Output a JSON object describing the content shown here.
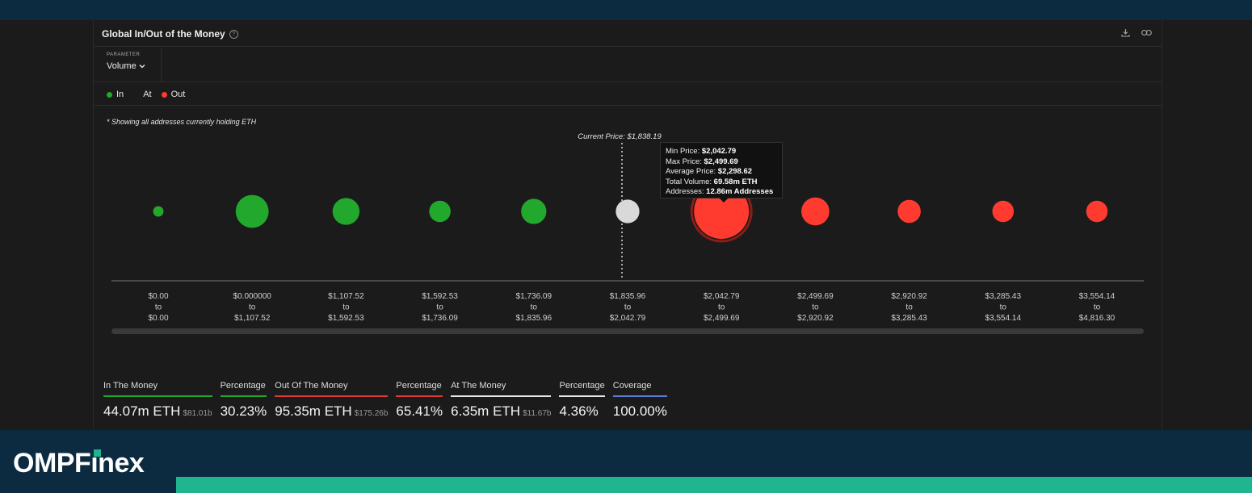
{
  "widget": {
    "title": "Global In/Out of the Money",
    "parameter_label": "PARAMETER",
    "parameter_value": "Volume",
    "legend": [
      {
        "label": "In",
        "color": "#22a82d"
      },
      {
        "label": "At",
        "color": ""
      },
      {
        "label": "Out",
        "color": "#ff3b2f"
      }
    ],
    "note": "* Showing all addresses currently holding ETH",
    "current_price_label": "Current Price: $1,838.19"
  },
  "tooltip": {
    "rows": [
      {
        "label": "Min Price:",
        "value": "$2,042.79"
      },
      {
        "label": "Max Price:",
        "value": "$2,499.69"
      },
      {
        "label": "Average Price:",
        "value": "$2,298.62"
      },
      {
        "label": "Total Volume:",
        "value": "69.58m ETH"
      },
      {
        "label": "Addresses:",
        "value": "12.86m Addresses"
      }
    ]
  },
  "chart_data": {
    "type": "scatter",
    "title": "Global In/Out of the Money",
    "current_price": 1838.19,
    "categories": [
      {
        "from": "$0.00",
        "to": "$0.00",
        "status": "in",
        "relative_size": 0.19
      },
      {
        "from": "$0.000000",
        "to": "$1,107.52",
        "status": "in",
        "relative_size": 0.6
      },
      {
        "from": "$1,107.52",
        "to": "$1,592.53",
        "status": "in",
        "relative_size": 0.49
      },
      {
        "from": "$1,592.53",
        "to": "$1,736.09",
        "status": "in",
        "relative_size": 0.39
      },
      {
        "from": "$1,736.09",
        "to": "$1,835.96",
        "status": "in",
        "relative_size": 0.46
      },
      {
        "from": "$1,835.96",
        "to": "$2,042.79",
        "status": "at",
        "relative_size": 0.43
      },
      {
        "from": "$2,042.79",
        "to": "$2,499.69",
        "status": "out",
        "relative_size": 1.0
      },
      {
        "from": "$2,499.69",
        "to": "$2,920.92",
        "status": "out",
        "relative_size": 0.51
      },
      {
        "from": "$2,920.92",
        "to": "$3,285.43",
        "status": "out",
        "relative_size": 0.42
      },
      {
        "from": "$3,285.43",
        "to": "$3,554.14",
        "status": "out",
        "relative_size": 0.39
      },
      {
        "from": "$3,554.14",
        "to": "$4,816.30",
        "status": "out",
        "relative_size": 0.39
      }
    ],
    "to_word": "to",
    "colors": {
      "in": "#22a82d",
      "at": "#d9d9d9",
      "out": "#ff3b2f"
    },
    "highlighted_index": 6
  },
  "stats": [
    {
      "label": "In The Money",
      "value": "44.07m ETH",
      "sub": "$81.01b",
      "color": "#22a82d"
    },
    {
      "label": "Percentage",
      "value": "30.23%",
      "sub": "",
      "color": "#22a82d"
    },
    {
      "label": "Out Of The Money",
      "value": "95.35m ETH",
      "sub": "$175.26b",
      "color": "#e0392f"
    },
    {
      "label": "Percentage",
      "value": "65.41%",
      "sub": "",
      "color": "#e0392f"
    },
    {
      "label": "At The Money",
      "value": "6.35m ETH",
      "sub": "$11.67b",
      "color": "#e6e6e6"
    },
    {
      "label": "Percentage",
      "value": "4.36%",
      "sub": "",
      "color": "#e6e6e6"
    },
    {
      "label": "Coverage",
      "value": "100.00%",
      "sub": "",
      "color": "#5b7fd6"
    }
  ],
  "footer": {
    "logo_part1": "OMPF",
    "logo_part2": "nex",
    "logo_i": "ı",
    "accent": "#1fb58f"
  }
}
